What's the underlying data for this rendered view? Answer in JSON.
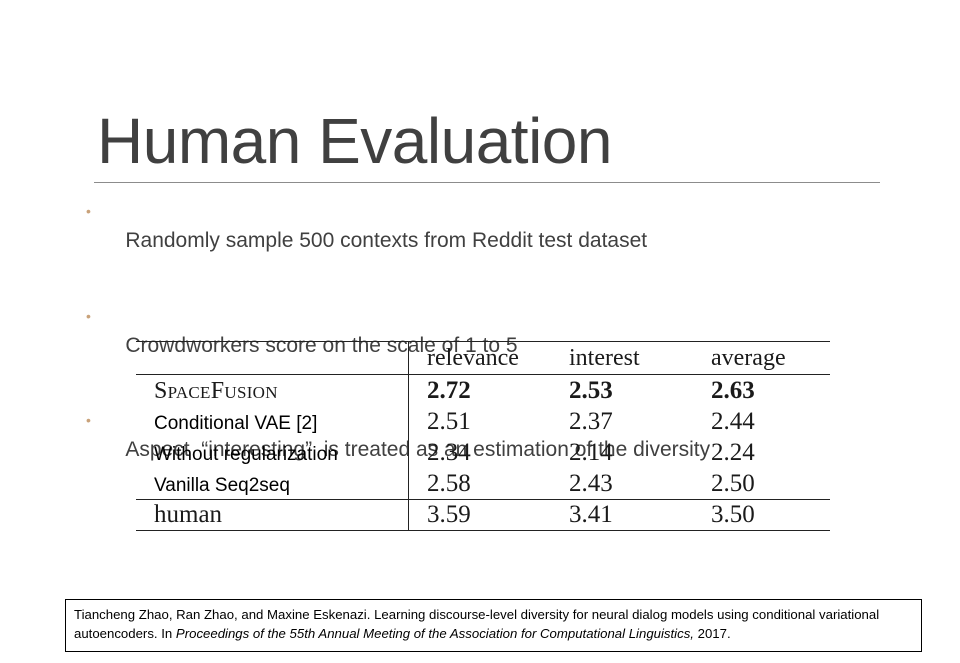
{
  "slide": {
    "title": "Human Evaluation",
    "bullet_char": "•",
    "bullets": [
      "Randomly sample 500 contexts from Reddit test dataset",
      "Crowdworkers score on the scale of 1 to 5",
      "Aspect  “interesting”  is treated as an estimation of the diversity"
    ],
    "colors": {
      "text": "#404040",
      "bullet_accent": "#c9a27a",
      "rule": "#8c8c8c"
    }
  },
  "table": {
    "columns": [
      "",
      "relevance",
      "interest",
      "average"
    ],
    "rows": [
      {
        "method": "SpaceFusion",
        "relevance": "2.72",
        "interest": "2.53",
        "average": "2.63",
        "bold": true
      },
      {
        "method": "Conditional VAE  [2]",
        "relevance": "2.51",
        "interest": "2.37",
        "average": "2.44"
      },
      {
        "method": "Without regularization",
        "relevance": "2.34",
        "interest": "2.14",
        "average": "2.24"
      },
      {
        "method": "Vanilla Seq2seq",
        "relevance": "2.58",
        "interest": "2.43",
        "average": "2.50"
      },
      {
        "method": "human",
        "relevance": "3.59",
        "interest": "3.41",
        "average": "3.50"
      }
    ]
  },
  "citation": {
    "text_before_venue": "Tiancheng Zhao, Ran Zhao, and Maxine Eskenazi. Learning discourse-level diversity for neural dialog models using conditional variational autoencoders. In ",
    "venue": "Proceedings of the 55th Annual Meeting of the Association for Computational Linguistics,",
    "year": " 2017."
  }
}
